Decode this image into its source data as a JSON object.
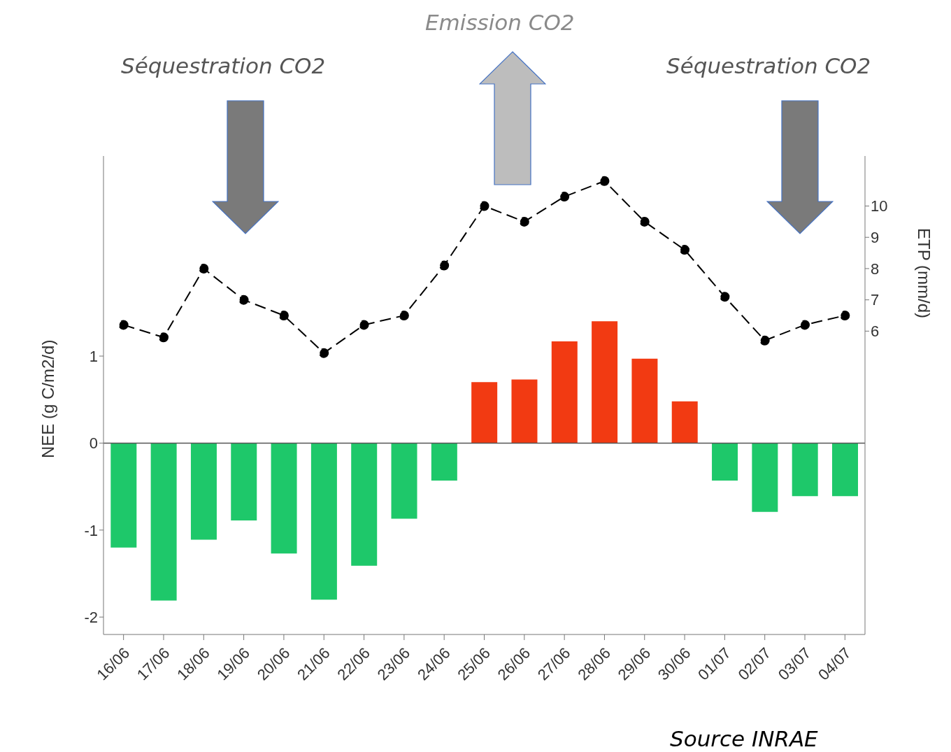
{
  "chart_data": {
    "type": "bar",
    "categories": [
      "16/06",
      "17/06",
      "18/06",
      "19/06",
      "20/06",
      "21/06",
      "22/06",
      "23/06",
      "24/06",
      "25/06",
      "26/06",
      "27/06",
      "28/06",
      "29/06",
      "30/06",
      "01/07",
      "02/07",
      "03/07",
      "04/07"
    ],
    "series": [
      {
        "colors": [
          "#1ec86a",
          "#1ec86a",
          "#1ec86a",
          "#1ec86a",
          "#1ec86a",
          "#1ec86a",
          "#1ec86a",
          "#1ec86a",
          "#1ec86a",
          "#f23a12",
          "#f23a12",
          "#f23a12",
          "#f23a12",
          "#f23a12",
          "#f23a12",
          "#1ec86a",
          "#1ec86a",
          "#1ec86a",
          "#1ec86a"
        ],
        "values": [
          -1.2,
          -1.81,
          -1.11,
          -0.89,
          -1.27,
          -1.8,
          -1.41,
          -0.87,
          -0.43,
          0.7,
          0.73,
          1.17,
          1.4,
          0.97,
          0.48,
          -0.43,
          -0.79,
          -0.61,
          -0.61
        ]
      },
      {
        "type": "line",
        "axis": "y2",
        "color": "#000000",
        "values": [
          6.2,
          5.8,
          8.0,
          7.0,
          6.5,
          5.3,
          6.2,
          6.5,
          8.1,
          10.0,
          9.5,
          10.3,
          10.8,
          9.5,
          8.6,
          7.1,
          5.7,
          6.2,
          6.5
        ]
      }
    ],
    "ylabel": "NEE (g C/m2/d)",
    "y2label": "ETP (mm/d)",
    "ylim": [
      -2.2,
      3.3
    ],
    "yticks": [
      -2,
      -1,
      0,
      1
    ],
    "y2lim": [
      -3.7,
      11.6
    ],
    "y2ticks": [
      6,
      7,
      8,
      9,
      10
    ],
    "ref_lines": [
      {
        "axis": "y",
        "value": 0,
        "color": "#555555"
      }
    ],
    "marker": "circle",
    "line_style": "dashed",
    "grid": false,
    "annotations": [
      "Séquestration CO2",
      "Emission CO2",
      "Séquestration CO2",
      "Source INRAE"
    ]
  }
}
